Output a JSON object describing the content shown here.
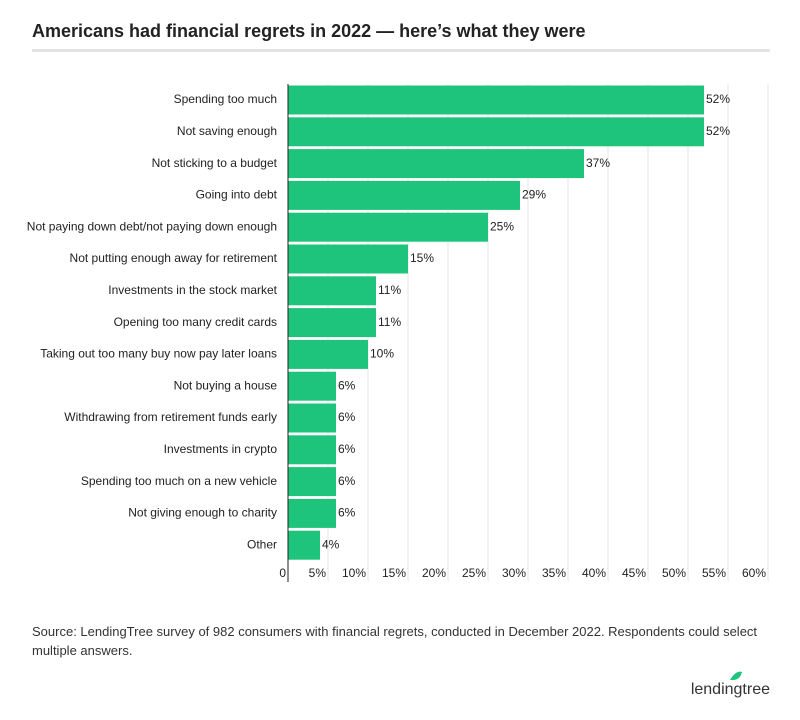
{
  "chart_data": {
    "type": "barh",
    "title": "Americans had financial regrets in 2022 — here’s what they were",
    "categories": [
      "Spending too much",
      "Not saving enough",
      "Not sticking to a budget",
      "Going into debt",
      "Not paying down debt/not paying down enough",
      "Not putting enough away for retirement",
      "Investments in the stock market",
      "Opening too many credit cards",
      "Taking out too many buy now pay later loans",
      "Not buying a house",
      "Withdrawing from retirement funds early",
      "Investments in crypto",
      "Spending too much on a new vehicle",
      "Not giving enough to charity",
      "Other"
    ],
    "values": [
      52,
      52,
      37,
      29,
      25,
      15,
      11,
      11,
      10,
      6,
      6,
      6,
      6,
      6,
      4
    ],
    "value_labels": [
      "52%",
      "52%",
      "37%",
      "29%",
      "25%",
      "15%",
      "11%",
      "11%",
      "10%",
      "6%",
      "6%",
      "6%",
      "6%",
      "6%",
      "4%"
    ],
    "color": "#1fc47c",
    "xlim": [
      0,
      60
    ],
    "xticks": [
      0,
      {
        "value": 5,
        "label": "5%"
      },
      {
        "value": 10,
        "label": "10%"
      },
      {
        "value": 15,
        "label": "15%"
      },
      {
        "value": 20,
        "label": "20%"
      },
      {
        "value": 25,
        "label": "25%"
      },
      {
        "value": 30,
        "label": "30%"
      },
      {
        "value": 35,
        "label": "35%"
      },
      {
        "value": 40,
        "label": "40%"
      },
      {
        "value": 45,
        "label": "45%"
      },
      {
        "value": 50,
        "label": "50%"
      },
      {
        "value": 55,
        "label": "55%"
      },
      {
        "value": 60,
        "label": "60%"
      }
    ],
    "grid": true,
    "source": "Source: LendingTree survey of 982 consumers with financial regrets, conducted in December 2022. Respondents could select multiple answers.",
    "brand": "lendingtree"
  }
}
